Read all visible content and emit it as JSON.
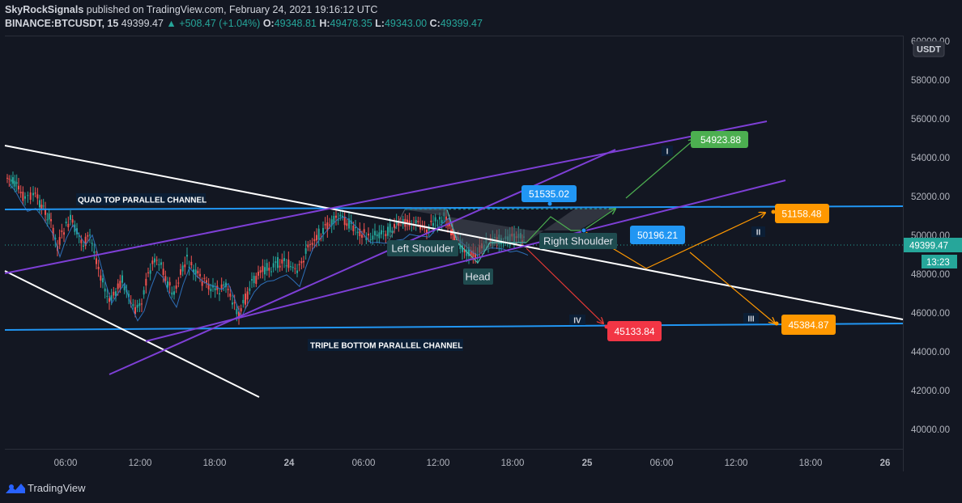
{
  "header": {
    "publisher": "SkyRockSignals",
    "published_text": "published on TradingView.com, February 24, 2021 19:16:12 UTC",
    "symbol": "BINANCE:BTCUSDT, 15",
    "last": "49399.47",
    "change": "+508.47 (+1.04%)",
    "o_label": "O:",
    "o_value": "49348.81",
    "h_label": "H:",
    "h_value": "49478.35",
    "l_label": "L:",
    "l_value": "49343.00",
    "c_label": "C:",
    "c_value": "49399.47",
    "up_arrow": "▲"
  },
  "price_axis": {
    "currency": "USDT",
    "ticks": [
      "60000.00",
      "58000.00",
      "56000.00",
      "54000.00",
      "52000.00",
      "50000.00",
      "48000.00",
      "46000.00",
      "44000.00",
      "42000.00",
      "40000.00"
    ],
    "current_price": "49399.47",
    "countdown": "13:23"
  },
  "time_axis": {
    "ticks": [
      "06:00",
      "12:00",
      "18:00",
      "24",
      "06:00",
      "12:00",
      "18:00",
      "25",
      "06:00",
      "12:00",
      "18:00",
      "26"
    ]
  },
  "annotations": {
    "quad_top": "QUAD TOP PARALLEL CHANNEL",
    "triple_bottom": "TRIPLE BOTTOM PARALLEL CHANNEL",
    "left_shoulder": "Left Shoulder",
    "head": "Head",
    "right_shoulder": "Right Shoulder",
    "roman_1": "I",
    "roman_2": "II",
    "roman_3": "III",
    "roman_4": "IV"
  },
  "price_labels": {
    "p1": "54923.88",
    "p2": "51535.02",
    "p3": "50196.21",
    "p4": "51158.48",
    "p5": "45133.84",
    "p6": "45384.87"
  },
  "colors": {
    "background": "#131722",
    "up": "#26a69a",
    "down": "#ef5350",
    "channel_blue": "#2196f3",
    "channel_purple": "#7e3fd6",
    "trend_white": "#ffffff",
    "label_green": "#4caf50",
    "label_blue": "#2196f3",
    "label_orange": "#ff9800",
    "label_red": "#f23645"
  },
  "footer": {
    "brand": "TradingView",
    "logo_icon": "tradingview-logo-icon"
  }
}
